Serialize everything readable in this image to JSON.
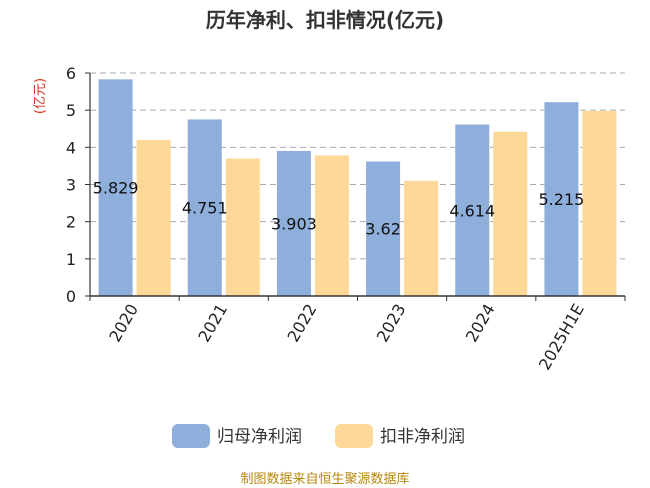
{
  "chart_data": {
    "type": "bar",
    "title": "历年净利、扣非情况(亿元)",
    "ylabel": "(亿元)",
    "xlabel": "",
    "categories": [
      "2020",
      "2021",
      "2022",
      "2023",
      "2024",
      "2025H1E"
    ],
    "ylim": [
      0,
      6
    ],
    "yticks": [
      0,
      1,
      2,
      3,
      4,
      5,
      6
    ],
    "grid": true,
    "legend_position": "bottom",
    "series": [
      {
        "name": "归母净利润",
        "color": "#8eaedc",
        "values": [
          5.829,
          4.751,
          3.903,
          3.62,
          4.614,
          5.215
        ],
        "labels": [
          "5.829",
          "4.751",
          "3.903",
          "3.62",
          "4.614",
          "5.215"
        ]
      },
      {
        "name": "扣非净利润",
        "color": "#fed898",
        "values": [
          4.2,
          3.7,
          3.78,
          3.1,
          4.42,
          4.98
        ]
      }
    ]
  },
  "source_text": "制图数据来自恒生聚源数据库"
}
